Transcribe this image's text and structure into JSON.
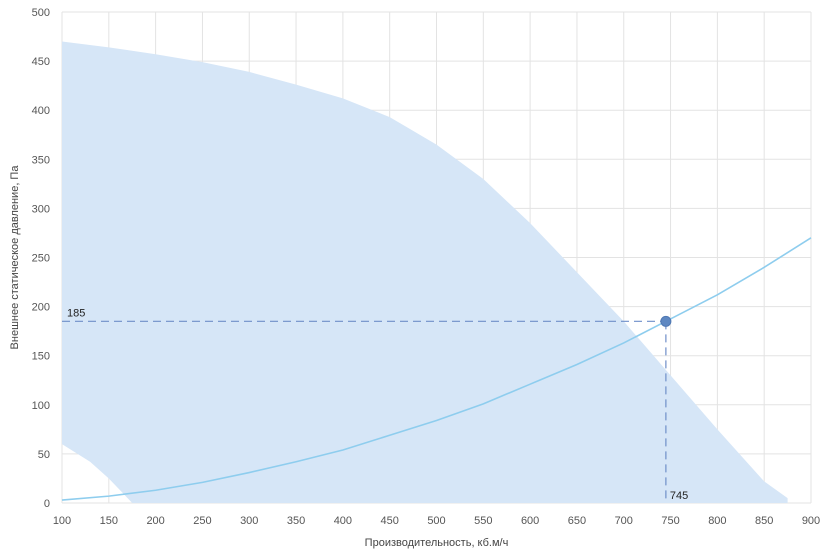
{
  "chart_data": {
    "type": "line",
    "xlabel": "Производительность, кб.м/ч",
    "ylabel": "Внешнее статическое давление, Па",
    "xlim": [
      100,
      900
    ],
    "ylim": [
      0,
      500
    ],
    "x_ticks": [
      100,
      150,
      200,
      250,
      300,
      350,
      400,
      450,
      500,
      550,
      600,
      650,
      700,
      750,
      800,
      850,
      900
    ],
    "y_ticks": [
      0,
      50,
      100,
      150,
      200,
      250,
      300,
      350,
      400,
      450,
      500
    ],
    "grid": true,
    "colors": {
      "area": "#d6e6f7",
      "system_curve": "#8ecdee",
      "guide": "#6f8fc9",
      "point": "#5e88c2",
      "grid": "#e3e3e3"
    },
    "operating_range": {
      "upper": {
        "x": [
          100,
          150,
          200,
          250,
          300,
          350,
          400,
          450,
          500,
          550,
          600,
          650,
          700,
          750,
          800,
          850,
          875
        ],
        "y": [
          470,
          464,
          457,
          449,
          439,
          426,
          412,
          393,
          365,
          330,
          285,
          235,
          185,
          130,
          75,
          22,
          5
        ]
      },
      "lower": {
        "x": [
          100,
          130,
          150,
          165,
          175
        ],
        "y": [
          60,
          42,
          25,
          10,
          0
        ]
      }
    },
    "series": [
      {
        "x": [
          100,
          150,
          200,
          250,
          300,
          350,
          400,
          450,
          500,
          550,
          600,
          650,
          700,
          745,
          800,
          850,
          900
        ],
        "y": [
          3,
          7,
          13,
          21,
          31,
          42,
          54,
          69,
          84,
          101,
          121,
          141,
          163,
          185,
          212,
          240,
          270
        ]
      }
    ],
    "operating_point": {
      "x": 745,
      "y": 185,
      "x_label": "745",
      "y_label": "185"
    }
  }
}
